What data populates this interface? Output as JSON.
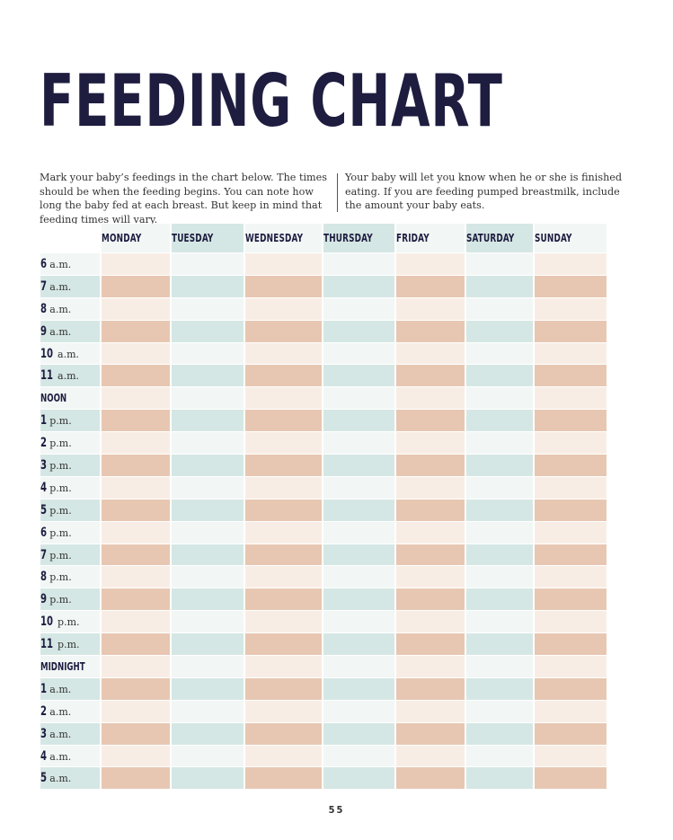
{
  "title": "FEEDING CHART",
  "intro": {
    "left": "Mark your baby’s feedings in the chart below. The times should be when the feeding begins. You can note how long the baby fed at each breast. But keep in mind that feeding times will vary.",
    "right": "Your baby will let you know when he or she is finished eating. If you are feeding pumped breastmilk, include the amount your baby eats."
  },
  "days": [
    "MONDAY",
    "TUESDAY",
    "WEDNESDAY",
    "THURSDAY",
    "FRIDAY",
    "SATURDAY",
    "SUNDAY"
  ],
  "times": [
    {
      "num": "6",
      "suffix": "a.m."
    },
    {
      "num": "7",
      "suffix": "a.m."
    },
    {
      "num": "8",
      "suffix": "a.m."
    },
    {
      "num": "9",
      "suffix": "a.m."
    },
    {
      "num": "10",
      "suffix": "a.m."
    },
    {
      "num": "11",
      "suffix": "a.m."
    },
    {
      "word": "NOON"
    },
    {
      "num": "1",
      "suffix": "p.m."
    },
    {
      "num": "2",
      "suffix": "p.m."
    },
    {
      "num": "3",
      "suffix": "p.m."
    },
    {
      "num": "4",
      "suffix": "p.m."
    },
    {
      "num": "5",
      "suffix": "p.m."
    },
    {
      "num": "6",
      "suffix": "p.m."
    },
    {
      "num": "7",
      "suffix": "p.m."
    },
    {
      "num": "8",
      "suffix": "p.m."
    },
    {
      "num": "9",
      "suffix": "p.m."
    },
    {
      "num": "10",
      "suffix": "p.m."
    },
    {
      "num": "11",
      "suffix": "p.m."
    },
    {
      "word": "MIDNIGHT"
    },
    {
      "num": "1",
      "suffix": "a.m."
    },
    {
      "num": "2",
      "suffix": "a.m."
    },
    {
      "num": "3",
      "suffix": "a.m."
    },
    {
      "num": "4",
      "suffix": "a.m."
    },
    {
      "num": "5",
      "suffix": "a.m."
    }
  ],
  "page_number": "55",
  "colors": {
    "title": "#1e1d40",
    "peach_light": "#f8ede5",
    "peach_dark": "#e7c7b2",
    "mint_light": "#f2f7f6",
    "mint_dark": "#d5e7e4"
  }
}
